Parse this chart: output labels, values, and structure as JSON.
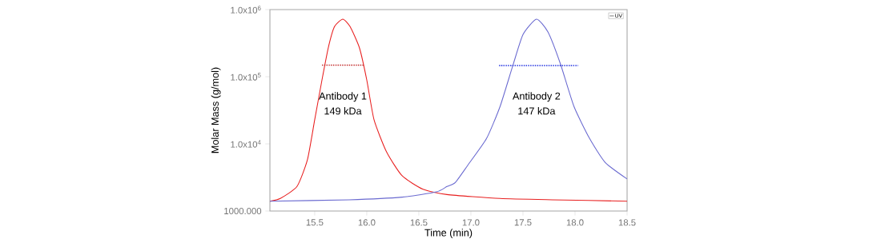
{
  "chart_data": {
    "type": "line",
    "xlabel": "Time (min)",
    "ylabel": "Molar Mass (g/mol)",
    "log": "y",
    "xlim": [
      15.07,
      18.5
    ],
    "ylim": [
      1000,
      1000000
    ],
    "xticks": [
      {
        "value": 15.5,
        "label": "15.5"
      },
      {
        "value": 16,
        "label": "16.0"
      },
      {
        "value": 16.5,
        "label": "16.5"
      },
      {
        "value": 17,
        "label": "17.0"
      },
      {
        "value": 17.5,
        "label": "17.5"
      },
      {
        "value": 18,
        "label": "18.0"
      },
      {
        "value": 18.5,
        "label": "18.5"
      }
    ],
    "yticks": [
      {
        "value": 1000,
        "label": "1000.000"
      },
      {
        "value": 10000,
        "label": "1.0x10$^{4}$"
      },
      {
        "value": 100000,
        "label": "1.0x10$^{5}$"
      },
      {
        "value": 1000000,
        "label": "1.0x10$^{6}$"
      }
    ],
    "series": [
      {
        "color": "#e82020",
        "x": [
          15.07,
          15.17,
          15.33,
          15.43,
          15.5,
          15.57,
          15.63,
          15.69,
          15.77,
          15.84,
          15.93,
          16.0,
          16.07,
          16.19,
          16.34,
          16.54,
          16.77,
          17.28,
          17.78,
          18.5
        ],
        "values": [
          1400,
          1540,
          2320,
          5780,
          22800,
          89600,
          268000,
          557000,
          720000,
          557000,
          268000,
          89600,
          22800,
          7600,
          3340,
          2110,
          1760,
          1540,
          1470,
          1400
        ]
      },
      {
        "color": "#6a6ad0",
        "x": [
          15.07,
          15.83,
          16.34,
          16.67,
          16.77,
          16.85,
          16.97,
          17.15,
          17.28,
          17.4,
          17.5,
          17.63,
          17.74,
          17.86,
          17.99,
          18.14,
          18.29,
          18.5
        ],
        "values": [
          1400,
          1470,
          1610,
          1930,
          2320,
          2660,
          4810,
          12000,
          36000,
          142000,
          424000,
          720000,
          464000,
          155000,
          36000,
          12000,
          5280,
          3000
        ]
      },
      {
        "color": "#c02828",
        "line_style": "dotted",
        "x": [
          15.57,
          15.98
        ],
        "values": [
          149000,
          149000
        ]
      },
      {
        "color": "#2030e0",
        "line_style": "dotted",
        "x": [
          17.27,
          18.03
        ],
        "values": [
          147000,
          147000
        ]
      }
    ],
    "annotations": [
      "Antibody 1",
      "149 kDa",
      "Antibody 2",
      "147 kDa",
      "UV"
    ],
    "grid": false
  }
}
